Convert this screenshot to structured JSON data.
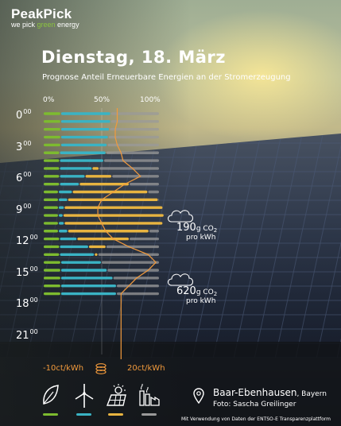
{
  "brand": {
    "name": "PeakPick",
    "tagline_pre": "we pick ",
    "tagline_green": "green",
    "tagline_post": " energy"
  },
  "title": "Dienstag, 18. März",
  "subtitle": "Prognose Anteil Erneuerbare Energien an der Stromerzeugung",
  "scale": [
    "0%",
    "50%",
    "100%"
  ],
  "hours": [
    {
      "label": "0",
      "sup": "00"
    },
    {
      "label": "3",
      "sup": "00"
    },
    {
      "label": "6",
      "sup": "00"
    },
    {
      "label": "9",
      "sup": "00"
    },
    {
      "label": "12",
      "sup": "00"
    },
    {
      "label": "15",
      "sup": "00"
    },
    {
      "label": "18",
      "sup": "00"
    },
    {
      "label": "21",
      "sup": "00"
    }
  ],
  "price_min": "-10ct/kWh",
  "price_max": "20ct/kWh",
  "co2_annotations": [
    {
      "value": "190",
      "unit_big": "g CO",
      "sub": "2",
      "per": "pro kWh"
    },
    {
      "value": "620",
      "unit_big": "g CO",
      "sub": "2",
      "per": "pro kWh"
    }
  ],
  "location": {
    "city": "Baar-Ebenhausen",
    "region": ", Bayern",
    "photo": "Foto: Sascha Greilinger"
  },
  "source": "Mit Verwendung von Daten der ENTSO-E Transparenzplattform",
  "colors": {
    "biomass": "#7dbb2f",
    "wind": "#3ab3c4",
    "solar": "#e8b440",
    "conventional": "#9a9a9a",
    "price": "#f29a3c"
  },
  "legend": [
    {
      "icon": "leaf-icon",
      "color": "#7dbb2f"
    },
    {
      "icon": "wind-turbine-icon",
      "color": "#3ab3c4"
    },
    {
      "icon": "solar-panel-icon",
      "color": "#e8b440"
    },
    {
      "icon": "factory-icon",
      "color": "#9a9a9a"
    }
  ],
  "chart_data": {
    "type": "bar",
    "stacked": true,
    "horizontal": true,
    "xlim": [
      0,
      100
    ],
    "categories": [
      "0",
      "1",
      "2",
      "3",
      "4",
      "5",
      "6",
      "7",
      "8",
      "9",
      "10",
      "11",
      "12",
      "13",
      "14",
      "15",
      "16",
      "17",
      "18",
      "19",
      "20",
      "21",
      "22",
      "23"
    ],
    "series": [
      {
        "values": [
          15,
          15,
          15,
          15,
          15,
          14,
          14,
          14,
          14,
          14,
          13,
          13,
          13,
          13,
          13,
          13,
          14,
          14,
          14,
          15,
          15,
          15,
          15,
          15
        ]
      },
      {
        "values": [
          43,
          43,
          42,
          41,
          40,
          40,
          38,
          28,
          22,
          17,
          12,
          8,
          5,
          4,
          5,
          8,
          15,
          25,
          30,
          35,
          40,
          45,
          48,
          48
        ]
      },
      {
        "values": [
          0,
          0,
          0,
          0,
          0,
          0,
          0,
          6,
          23,
          43,
          65,
          78,
          85,
          87,
          85,
          70,
          45,
          15,
          3,
          0,
          0,
          0,
          0,
          0
        ]
      },
      {
        "values": [
          42,
          42,
          43,
          44,
          45,
          46,
          48,
          52,
          41,
          26,
          10,
          1,
          0,
          0,
          0,
          9,
          26,
          46,
          53,
          50,
          45,
          40,
          37,
          37
        ]
      }
    ],
    "price_line": {
      "xlim": [
        -10,
        20
      ],
      "values": [
        9,
        9,
        8.5,
        8.5,
        9,
        10,
        10.5,
        13,
        15,
        11,
        8,
        5,
        4,
        4,
        5,
        6,
        8,
        12,
        17,
        19,
        17,
        14,
        12,
        10
      ]
    }
  }
}
